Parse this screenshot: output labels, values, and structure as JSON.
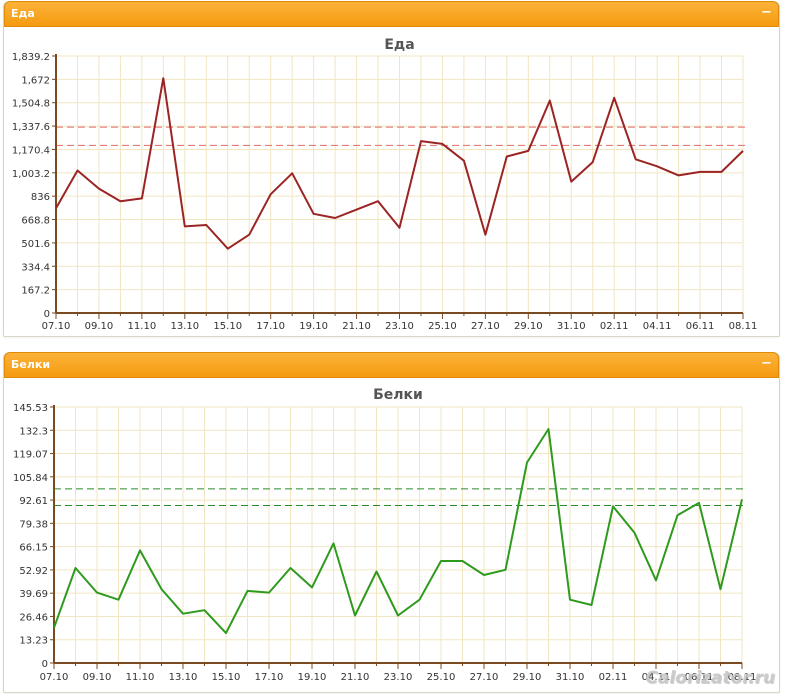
{
  "panels": [
    {
      "title": "Еда",
      "collapse_icon": "minus-icon"
    },
    {
      "title": "Белки",
      "collapse_icon": "minus-icon"
    }
  ],
  "watermark": "Calorizator.ru",
  "colors": {
    "header": "#f7a21c",
    "series1": "#9b2424",
    "ref1": "#e06a6a",
    "series2": "#2e9a1e",
    "ref2": "#2a8a2a",
    "grid": "#f0e6c2",
    "axis": "#7a4a20"
  },
  "chart_data": [
    {
      "type": "line",
      "title": "Еда",
      "xlabel": "",
      "ylabel": "",
      "ylim": [
        0,
        1839.2
      ],
      "yticks": [
        "0",
        "167.2",
        "334.4",
        "501.6",
        "668.8",
        "836",
        "1,003.2",
        "1,170.4",
        "1,337.6",
        "1,504.8",
        "1,672",
        "1,839.2"
      ],
      "xticks": [
        "07.10",
        "09.10",
        "11.10",
        "13.10",
        "15.10",
        "17.10",
        "19.10",
        "21.10",
        "23.10",
        "25.10",
        "27.10",
        "29.10",
        "31.10",
        "02.11",
        "04.11",
        "06.11",
        "08.11"
      ],
      "reference_lines": [
        1200,
        1330
      ],
      "grid": true,
      "series": [
        {
          "values": [
            750,
            1020,
            890,
            800,
            820,
            1680,
            620,
            630,
            460,
            560,
            850,
            1000,
            710,
            680,
            740,
            800,
            610,
            1230,
            1210,
            1090,
            560,
            1120,
            1160,
            1520,
            940,
            1080,
            1540,
            1100,
            1050,
            985,
            1010,
            1010,
            1160
          ]
        }
      ]
    },
    {
      "type": "line",
      "title": "Белки",
      "xlabel": "",
      "ylabel": "",
      "ylim": [
        0,
        145.53
      ],
      "yticks": [
        "0",
        "13.23",
        "26.46",
        "39.69",
        "52.92",
        "66.15",
        "79.38",
        "92.61",
        "105.84",
        "119.07",
        "132.3",
        "145.53"
      ],
      "xticks": [
        "07.10",
        "09.10",
        "11.10",
        "13.10",
        "15.10",
        "17.10",
        "19.10",
        "21.10",
        "23.10",
        "25.10",
        "27.10",
        "29.10",
        "31.10",
        "02.11",
        "04.11",
        "06.11",
        "08.11"
      ],
      "reference_lines": [
        89.5,
        99
      ],
      "grid": true,
      "series": [
        {
          "values": [
            20,
            54,
            40,
            36,
            64,
            42,
            28,
            30,
            17,
            41,
            40,
            54,
            43,
            68,
            27,
            52,
            27,
            36,
            58,
            58,
            50,
            53,
            114,
            133,
            36,
            33,
            89,
            74,
            47,
            84,
            91,
            42,
            93
          ]
        }
      ]
    }
  ]
}
